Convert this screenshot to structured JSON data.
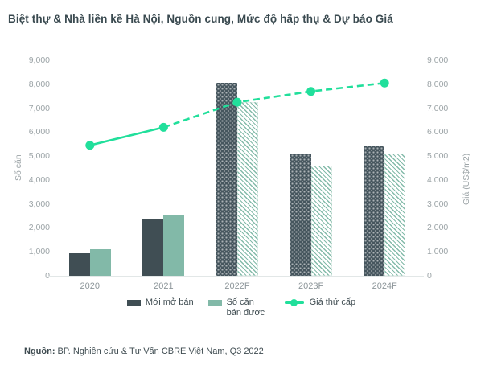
{
  "title": "Biệt thự & Nhà liền kề Hà Nội, Nguồn cung, Mức độ hấp thụ & Dự báo Giá",
  "source": {
    "label": "Nguồn:",
    "text": " BP. Nghiên cứu & Tư Vấn CBRE Việt Nam, Q3 2022"
  },
  "colors": {
    "title_text": "#3A4A50",
    "body_text": "#3F4C51",
    "axis_text": "#9CA4A7",
    "bar_new_launch": "#404E54",
    "bar_units_sold": "#82B9A8",
    "price_line": "#21DF9B"
  },
  "chart_data": {
    "type": "bar",
    "subtype": "grouped bars with overlaid line, dual y-axis",
    "categories": [
      "2020",
      "2021",
      "2022F",
      "2023F",
      "2024F"
    ],
    "series": [
      {
        "name": "Mới mở bán",
        "type": "bar",
        "axis": "left",
        "color": "#404E54",
        "values": [
          950,
          2400,
          8050,
          5100,
          5400
        ]
      },
      {
        "name": "Số căn bán được",
        "type": "bar",
        "axis": "left",
        "color": "#82B9A8",
        "values": [
          1100,
          2550,
          7250,
          4600,
          5100
        ]
      },
      {
        "name": "Giá thứ cấp",
        "type": "line",
        "axis": "right",
        "color": "#21DF9B",
        "values": [
          5450,
          6200,
          7250,
          7700,
          8050
        ],
        "dashed_from_index": 1
      }
    ],
    "left_axis": {
      "label": "Số căn",
      "min": 0,
      "max": 9000,
      "step": 1000
    },
    "right_axis": {
      "label": "Giá (US$/m2)",
      "min": 0,
      "max": 9000,
      "step": 1000
    },
    "forecast_from_index": 2,
    "grid": false,
    "legend_position": "bottom"
  }
}
